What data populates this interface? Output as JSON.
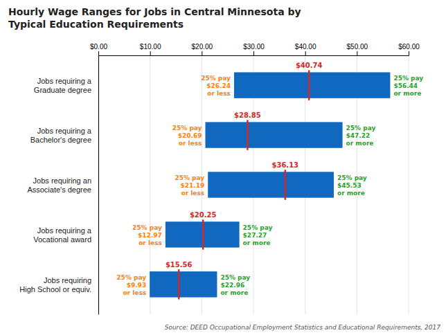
{
  "chart_data": {
    "type": "range",
    "orientation": "horizontal",
    "title": "Hourly Wage Ranges for Jobs in Central Minnesota by\nTypical Education Requirements",
    "categories": [
      "Jobs requiring\nHigh School or equiv.",
      "Jobs requiring a\nVocational award",
      "Jobs requiring an\nAssociate's degree",
      "Jobs requiring a\nBachelor's degree",
      "Jobs requiring a\nGraduate degree"
    ],
    "p25": [
      9.93,
      12.97,
      21.19,
      20.69,
      26.24
    ],
    "median": [
      15.56,
      20.25,
      36.13,
      28.85,
      40.74
    ],
    "p75": [
      22.96,
      27.27,
      45.53,
      47.22,
      56.44
    ],
    "p25_labels": [
      "25% pay\n$9.93\nor less",
      "25% pay\n$12.97\nor less",
      "25% pay\n$21.19\nor less",
      "25% pay\n$20.69\nor less",
      "25% pay\n$26.24\nor less"
    ],
    "median_labels": [
      "$15.56",
      "$20.25",
      "$36.13",
      "$28.85",
      "$40.74"
    ],
    "p75_labels": [
      "25% pay\n$22.96\nor more",
      "25% pay\n$27.27\nor more",
      "25% pay\n$45.53\nor more",
      "25% pay\n$47.22\nor more",
      "25% pay\n$56.44\nor more"
    ],
    "color": "#1068bf",
    "xlim": [
      0,
      60
    ],
    "xticks": [
      {
        "value": 0,
        "label": "$0.00"
      },
      {
        "value": 10,
        "label": "$10.00"
      },
      {
        "value": 20,
        "label": "$20.00"
      },
      {
        "value": 30,
        "label": "$30.00"
      },
      {
        "value": 40,
        "label": "$40.00"
      },
      {
        "value": 50,
        "label": "$50.00"
      },
      {
        "value": 60,
        "label": "$60.00"
      }
    ],
    "grid": true,
    "annotations": [
      "Source: DEED Occupational Employment Statistics and Educational Requirements, 2017"
    ]
  }
}
